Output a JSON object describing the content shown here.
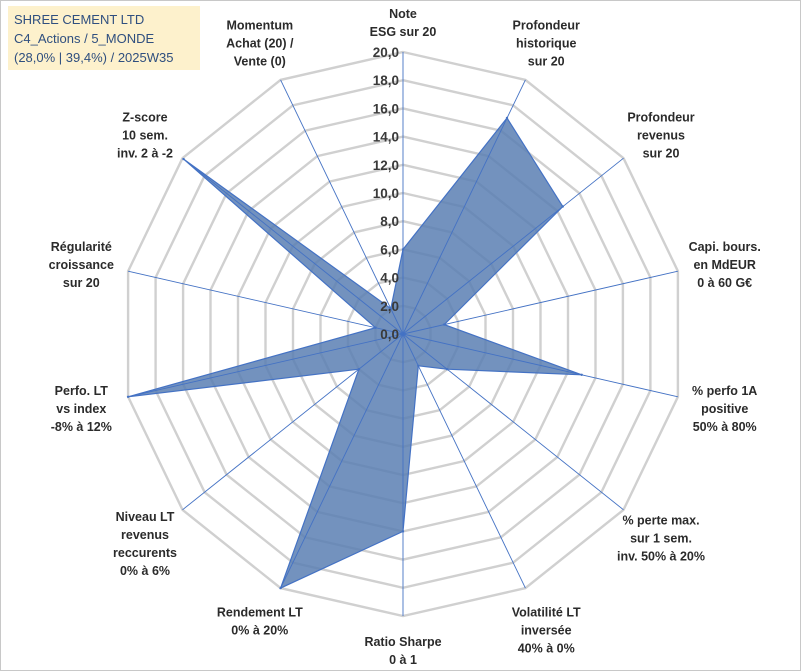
{
  "title_box": {
    "line1": "SHREE CEMENT LTD",
    "line2": "C4_Actions / 5_MONDE",
    "line3": "(28,0% | 39,4%) / 2025W35"
  },
  "chart_data": {
    "type": "radar",
    "r_min": 0,
    "r_max": 20,
    "ticks": [
      0,
      2,
      4,
      6,
      8,
      10,
      12,
      14,
      16,
      18,
      20
    ],
    "tick_labels": [
      "0,0",
      "2,0",
      "4,0",
      "6,0",
      "8,0",
      "10,0",
      "12,0",
      "14,0",
      "16,0",
      "18,0",
      "20,0"
    ],
    "axes": [
      [
        "Note",
        "ESG sur 20"
      ],
      [
        "Profondeur",
        "historique",
        "sur 20"
      ],
      [
        "Profondeur",
        "revenus",
        "sur 20"
      ],
      [
        "Capi. bours.",
        "en MdEUR",
        "0 à 60 G€"
      ],
      [
        "% perfo 1A",
        "positive",
        "50% à 80%"
      ],
      [
        "% perte max.",
        "sur 1 sem.",
        "inv. 50% à 20%"
      ],
      [
        "Volatilité LT",
        "inversée",
        "40% à 0%"
      ],
      [
        "Ratio Sharpe",
        "0 à 1"
      ],
      [
        "Rendement LT",
        "0% à 20%"
      ],
      [
        "Niveau LT",
        "revenus",
        "reccurents",
        "0% à 6%"
      ],
      [
        "Perfo. LT",
        "vs index",
        "-8% à 12%"
      ],
      [
        "Régularité",
        "croissance",
        "sur 20"
      ],
      [
        "Z-score",
        "10 sem.",
        "inv. 2 à -2"
      ],
      [
        "Momentum",
        "Achat (20) /",
        "Vente (0)"
      ]
    ],
    "values": [
      6.0,
      17.0,
      14.5,
      3.0,
      13.0,
      4.0,
      2.5,
      14.0,
      20.0,
      4.0,
      20.0,
      2.0,
      19.9,
      2.0
    ],
    "grid": true,
    "legend": "none"
  }
}
